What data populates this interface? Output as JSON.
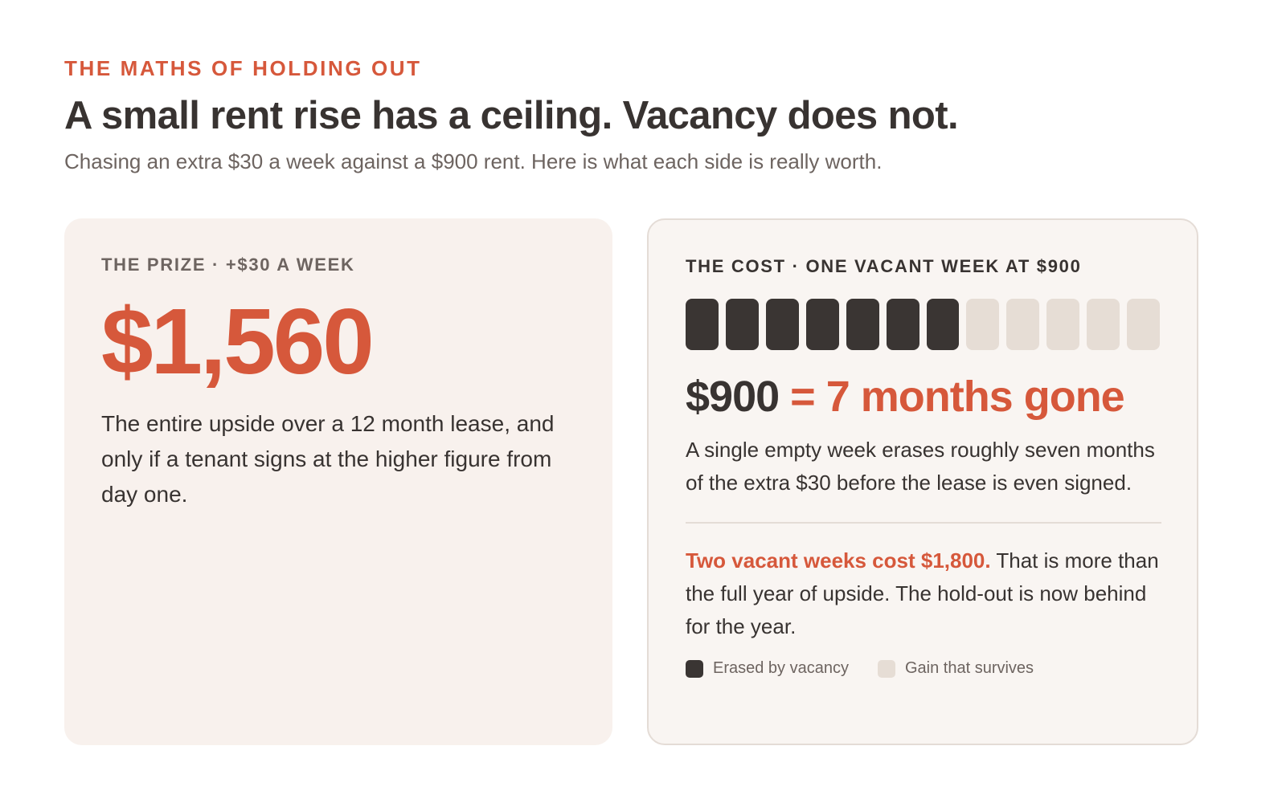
{
  "header": {
    "eyebrow": "THE MATHS OF HOLDING OUT",
    "title": "A small rent rise has a ceiling. Vacancy does not.",
    "subtitle": "Chasing an extra $30 a week against a $900 rent. Here is what each side is really worth."
  },
  "prize_card": {
    "label": "THE PRIZE · +$30 A WEEK",
    "amount": "$1,560",
    "body": "The entire upside over a 12 month lease, and only if a tenant signs at the higher figure from day one."
  },
  "cost_card": {
    "label": "THE COST · ONE VACANT WEEK AT $900",
    "months_total": 12,
    "months_erased": 7,
    "equation_amount": "$900",
    "equation_result": "= 7 months gone",
    "body": "A single empty week erases roughly seven months of the extra $30 before the lease is even signed.",
    "note_highlight": "Two vacant weeks cost $1,800.",
    "note_rest": " That is more than the full year of upside. The hold-out is now behind for the year.",
    "legend": {
      "erased": "Erased by vacancy",
      "survives": "Gain that survives"
    }
  },
  "colors": {
    "accent": "#d6583b",
    "dark": "#383331",
    "erased_block": "#3a3533",
    "surviving_block": "#e6ddd5",
    "prize_bg": "#f8f1ed"
  }
}
